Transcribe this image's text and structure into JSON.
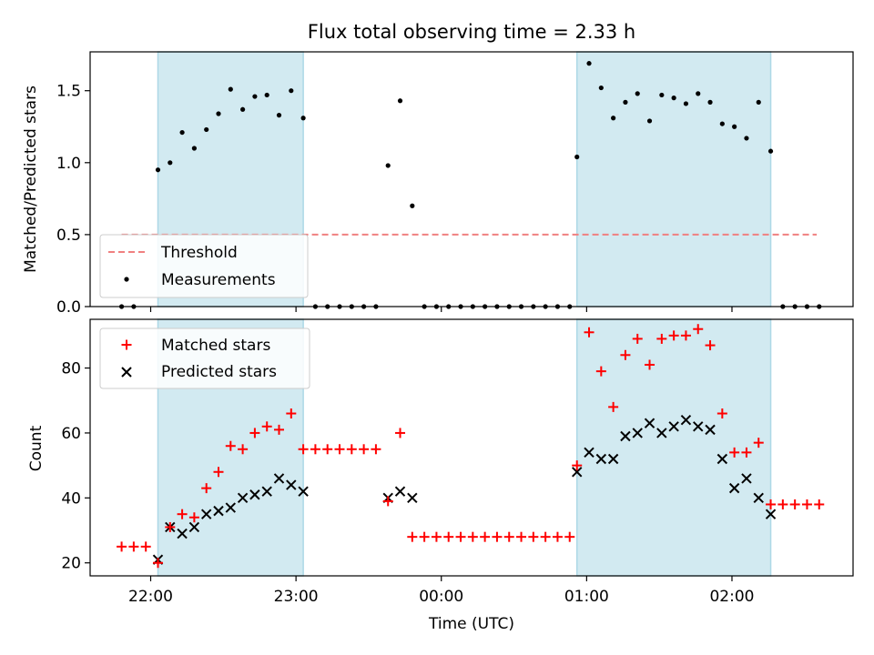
{
  "figure": {
    "title": "Flux total observing time = 2.33 h"
  },
  "chart_data": [
    {
      "type": "scatter",
      "ylabel": "Matched/Predicted stars",
      "ylim": [
        0,
        1.77
      ],
      "yticks": [
        0.0,
        0.5,
        1.0,
        1.5
      ],
      "ytick_labels": [
        "0.0",
        "0.5",
        "1.0",
        "1.5"
      ],
      "threshold": {
        "label": "Threshold",
        "value": 0.5,
        "x_start": "21:48",
        "x_end": "02:35",
        "color": "#f08080"
      },
      "shaded_regions": [
        {
          "x0": "22:03",
          "x1": "23:03"
        },
        {
          "x0": "00:56",
          "x1": "02:16"
        }
      ],
      "shade_color": "#add8e6",
      "legend": {
        "position": "lower-left",
        "entries": [
          "Threshold",
          "Measurements"
        ]
      },
      "series": [
        {
          "name": "Measurements",
          "marker": "dot",
          "color": "#000000",
          "points": [
            [
              "21:48",
              0
            ],
            [
              "21:53",
              0
            ],
            [
              "22:03",
              0.95
            ],
            [
              "22:08",
              1.0
            ],
            [
              "22:13",
              1.21
            ],
            [
              "22:18",
              1.1
            ],
            [
              "22:23",
              1.23
            ],
            [
              "22:28",
              1.34
            ],
            [
              "22:33",
              1.51
            ],
            [
              "22:38",
              1.37
            ],
            [
              "22:43",
              1.46
            ],
            [
              "22:48",
              1.47
            ],
            [
              "22:53",
              1.33
            ],
            [
              "22:58",
              1.5
            ],
            [
              "23:03",
              1.31
            ],
            [
              "23:08",
              0
            ],
            [
              "23:13",
              0
            ],
            [
              "23:18",
              0
            ],
            [
              "23:23",
              0
            ],
            [
              "23:28",
              0
            ],
            [
              "23:33",
              0
            ],
            [
              "23:38",
              0.98
            ],
            [
              "23:43",
              1.43
            ],
            [
              "23:48",
              0.7
            ],
            [
              "23:53",
              0
            ],
            [
              "23:58",
              0
            ],
            [
              "00:03",
              0
            ],
            [
              "00:08",
              0
            ],
            [
              "00:13",
              0
            ],
            [
              "00:18",
              0
            ],
            [
              "00:23",
              0
            ],
            [
              "00:28",
              0
            ],
            [
              "00:33",
              0
            ],
            [
              "00:38",
              0
            ],
            [
              "00:43",
              0
            ],
            [
              "00:48",
              0
            ],
            [
              "00:53",
              0
            ],
            [
              "00:56",
              1.04
            ],
            [
              "01:01",
              1.69
            ],
            [
              "01:06",
              1.52
            ],
            [
              "01:11",
              1.31
            ],
            [
              "01:16",
              1.42
            ],
            [
              "01:21",
              1.48
            ],
            [
              "01:26",
              1.29
            ],
            [
              "01:31",
              1.47
            ],
            [
              "01:36",
              1.45
            ],
            [
              "01:41",
              1.41
            ],
            [
              "01:46",
              1.48
            ],
            [
              "01:51",
              1.42
            ],
            [
              "01:56",
              1.27
            ],
            [
              "02:01",
              1.25
            ],
            [
              "02:06",
              1.17
            ],
            [
              "02:11",
              1.42
            ],
            [
              "02:16",
              1.08
            ],
            [
              "02:21",
              0
            ],
            [
              "02:26",
              0
            ],
            [
              "02:31",
              0
            ],
            [
              "02:36",
              0
            ]
          ]
        }
      ]
    },
    {
      "type": "scatter",
      "xlabel": "Time (UTC)",
      "ylabel": "Count",
      "ylim": [
        16,
        95
      ],
      "yticks": [
        20,
        40,
        60,
        80
      ],
      "ytick_labels": [
        "20",
        "40",
        "60",
        "80"
      ],
      "xlim": [
        "21:35",
        "02:50"
      ],
      "xticks": [
        "22:00",
        "23:00",
        "00:00",
        "01:00",
        "02:00"
      ],
      "xtick_labels": [
        "22:00",
        "23:00",
        "00:00",
        "01:00",
        "02:00"
      ],
      "shaded_regions": [
        {
          "x0": "22:03",
          "x1": "23:03"
        },
        {
          "x0": "00:56",
          "x1": "02:16"
        }
      ],
      "shade_color": "#add8e6",
      "legend": {
        "position": "top-left",
        "entries": [
          "Matched stars",
          "Predicted stars"
        ]
      },
      "series": [
        {
          "name": "Matched stars",
          "marker": "plus",
          "color": "#ff0000",
          "points": [
            [
              "21:48",
              25
            ],
            [
              "21:53",
              25
            ],
            [
              "21:58",
              25
            ],
            [
              "22:03",
              20
            ],
            [
              "22:08",
              31
            ],
            [
              "22:13",
              35
            ],
            [
              "22:18",
              34
            ],
            [
              "22:23",
              43
            ],
            [
              "22:28",
              48
            ],
            [
              "22:33",
              56
            ],
            [
              "22:38",
              55
            ],
            [
              "22:43",
              60
            ],
            [
              "22:48",
              62
            ],
            [
              "22:53",
              61
            ],
            [
              "22:58",
              66
            ],
            [
              "23:03",
              55
            ],
            [
              "23:08",
              55
            ],
            [
              "23:13",
              55
            ],
            [
              "23:18",
              55
            ],
            [
              "23:23",
              55
            ],
            [
              "23:28",
              55
            ],
            [
              "23:33",
              55
            ],
            [
              "23:38",
              39
            ],
            [
              "23:43",
              60
            ],
            [
              "23:48",
              28
            ],
            [
              "23:53",
              28
            ],
            [
              "23:58",
              28
            ],
            [
              "00:03",
              28
            ],
            [
              "00:08",
              28
            ],
            [
              "00:13",
              28
            ],
            [
              "00:18",
              28
            ],
            [
              "00:23",
              28
            ],
            [
              "00:28",
              28
            ],
            [
              "00:33",
              28
            ],
            [
              "00:38",
              28
            ],
            [
              "00:43",
              28
            ],
            [
              "00:48",
              28
            ],
            [
              "00:53",
              28
            ],
            [
              "00:56",
              50
            ],
            [
              "01:01",
              91
            ],
            [
              "01:06",
              79
            ],
            [
              "01:11",
              68
            ],
            [
              "01:16",
              84
            ],
            [
              "01:21",
              89
            ],
            [
              "01:26",
              81
            ],
            [
              "01:31",
              89
            ],
            [
              "01:36",
              90
            ],
            [
              "01:41",
              90
            ],
            [
              "01:46",
              92
            ],
            [
              "01:51",
              87
            ],
            [
              "01:56",
              66
            ],
            [
              "02:01",
              54
            ],
            [
              "02:06",
              54
            ],
            [
              "02:11",
              57
            ],
            [
              "02:16",
              38
            ],
            [
              "02:21",
              38
            ],
            [
              "02:26",
              38
            ],
            [
              "02:31",
              38
            ],
            [
              "02:36",
              38
            ]
          ]
        },
        {
          "name": "Predicted stars",
          "marker": "x",
          "color": "#000000",
          "points": [
            [
              "22:03",
              21
            ],
            [
              "22:08",
              31
            ],
            [
              "22:13",
              29
            ],
            [
              "22:18",
              31
            ],
            [
              "22:23",
              35
            ],
            [
              "22:28",
              36
            ],
            [
              "22:33",
              37
            ],
            [
              "22:38",
              40
            ],
            [
              "22:43",
              41
            ],
            [
              "22:48",
              42
            ],
            [
              "22:53",
              46
            ],
            [
              "22:58",
              44
            ],
            [
              "23:03",
              42
            ],
            [
              "23:38",
              40
            ],
            [
              "23:43",
              42
            ],
            [
              "23:48",
              40
            ],
            [
              "00:56",
              48
            ],
            [
              "01:01",
              54
            ],
            [
              "01:06",
              52
            ],
            [
              "01:11",
              52
            ],
            [
              "01:16",
              59
            ],
            [
              "01:21",
              60
            ],
            [
              "01:26",
              63
            ],
            [
              "01:31",
              60
            ],
            [
              "01:36",
              62
            ],
            [
              "01:41",
              64
            ],
            [
              "01:46",
              62
            ],
            [
              "01:51",
              61
            ],
            [
              "01:56",
              52
            ],
            [
              "02:01",
              43
            ],
            [
              "02:06",
              46
            ],
            [
              "02:11",
              40
            ],
            [
              "02:16",
              35
            ]
          ]
        }
      ]
    }
  ]
}
